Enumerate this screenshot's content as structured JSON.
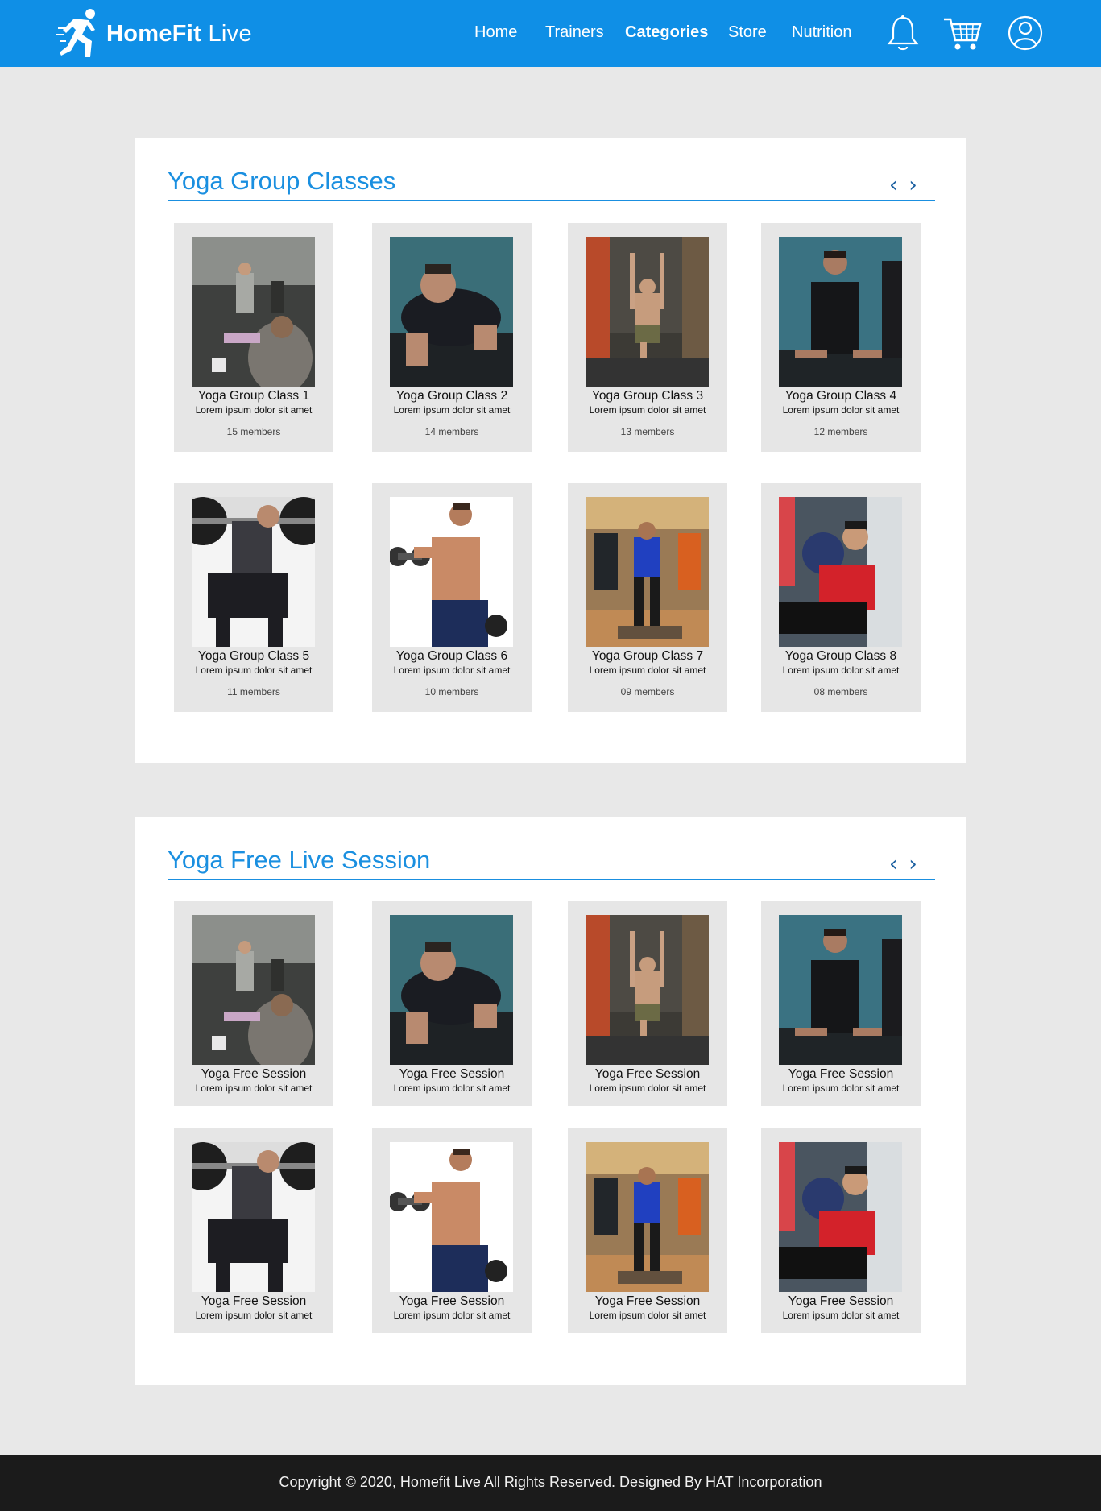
{
  "brand": {
    "name_bold": "HomeFit",
    "name_light": "Live"
  },
  "nav": {
    "items": [
      {
        "label": "Home",
        "active": false
      },
      {
        "label": "Trainers",
        "active": false
      },
      {
        "label": "Categories",
        "active": true
      },
      {
        "label": "Store",
        "active": false
      },
      {
        "label": "Nutrition",
        "active": false
      }
    ],
    "icons": [
      "bell-icon",
      "cart-icon",
      "user-icon"
    ]
  },
  "colors": {
    "accent": "#0f8fe6",
    "title_blue": "#1a8fe0",
    "footer_bg": "#1b1b1b",
    "page_bg": "#e8e8e8",
    "card_bg": "#e6e6e6"
  },
  "sections": [
    {
      "title": "Yoga Group Classes",
      "prev": "‹",
      "next": "›",
      "cards": [
        {
          "title": "Yoga Group Class 1",
          "desc": "Lorem ipsum dolor sit amet",
          "members": "15 members",
          "photo": "photo-class-gym-floor"
        },
        {
          "title": "Yoga Group Class 2",
          "desc": "Lorem ipsum dolor sit amet",
          "members": "14 members",
          "photo": "photo-pushup"
        },
        {
          "title": "Yoga Group Class 3",
          "desc": "Lorem ipsum dolor sit amet",
          "members": "13 members",
          "photo": "photo-tree-pose"
        },
        {
          "title": "Yoga Group Class 4",
          "desc": "Lorem ipsum dolor sit amet",
          "members": "12 members",
          "photo": "photo-cobra"
        },
        {
          "title": "Yoga Group Class 5",
          "desc": "Lorem ipsum dolor sit amet",
          "members": "11 members",
          "photo": "photo-squat"
        },
        {
          "title": "Yoga Group Class 6",
          "desc": "Lorem ipsum dolor sit amet",
          "members": "10 members",
          "photo": "photo-dumbbell"
        },
        {
          "title": "Yoga Group Class 7",
          "desc": "Lorem ipsum dolor sit amet",
          "members": "09 members",
          "photo": "photo-step-class"
        },
        {
          "title": "Yoga Group Class 8",
          "desc": "Lorem ipsum dolor sit amet",
          "members": "08 members",
          "photo": "photo-medicine-ball"
        }
      ]
    },
    {
      "title": "Yoga Free Live Session",
      "prev": "‹",
      "next": "›",
      "cards": [
        {
          "title": "Yoga Free Session",
          "desc": "Lorem ipsum dolor sit amet",
          "photo": "photo-class-gym-floor"
        },
        {
          "title": "Yoga Free Session",
          "desc": "Lorem ipsum dolor sit amet",
          "photo": "photo-pushup"
        },
        {
          "title": "Yoga Free Session",
          "desc": "Lorem ipsum dolor sit amet",
          "photo": "photo-tree-pose"
        },
        {
          "title": "Yoga Free Session",
          "desc": "Lorem ipsum dolor sit amet",
          "photo": "photo-cobra"
        },
        {
          "title": "Yoga Free Session",
          "desc": "Lorem ipsum dolor sit amet",
          "photo": "photo-squat"
        },
        {
          "title": "Yoga Free Session",
          "desc": "Lorem ipsum dolor sit amet",
          "photo": "photo-dumbbell"
        },
        {
          "title": "Yoga Free Session",
          "desc": "Lorem ipsum dolor sit amet",
          "photo": "photo-step-class"
        },
        {
          "title": "Yoga Free Session",
          "desc": "Lorem ipsum dolor sit amet",
          "photo": "photo-medicine-ball"
        }
      ]
    }
  ],
  "footer": {
    "text": "Copyright © 2020, Homefit Live All Rights Reserved. Designed By HAT Incorporation"
  }
}
